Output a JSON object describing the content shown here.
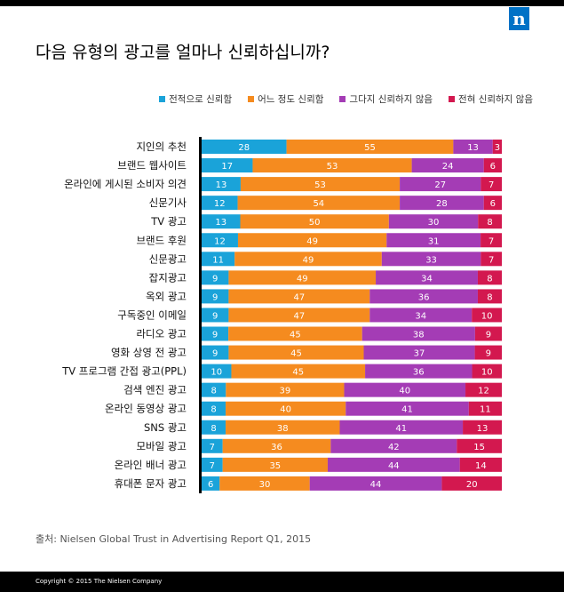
{
  "header": {
    "logo_letter": "n"
  },
  "chart_data": {
    "type": "bar",
    "orientation": "horizontal",
    "stacked": true,
    "title": "다음 유형의 광고를 얼마나 신뢰하십니까?",
    "categories": [
      "지인의 추천",
      "브랜드 웹사이트",
      "온라인에 게시된 소비자 의견",
      "신문기사",
      "TV 광고",
      "브랜드 후원",
      "신문광고",
      "잡지광고",
      "옥외 광고",
      "구독중인 이메일",
      "라디오 광고",
      "영화 상영 전 광고",
      "TV 프로그램 간접 광고(PPL)",
      "검색 엔진 광고",
      "온라인 동영상 광고",
      "SNS 광고",
      "모바일 광고",
      "온라인 배너 광고",
      "휴대폰 문자 광고"
    ],
    "series": [
      {
        "name": "전적으로 신뢰함",
        "color": "#1aa3d9",
        "values": [
          28,
          17,
          13,
          12,
          13,
          12,
          11,
          9,
          9,
          9,
          9,
          9,
          10,
          8,
          8,
          8,
          7,
          7,
          6
        ]
      },
      {
        "name": "어느 정도 신뢰함",
        "color": "#f58b1f",
        "values": [
          55,
          53,
          53,
          54,
          50,
          49,
          49,
          49,
          47,
          47,
          45,
          45,
          45,
          39,
          40,
          38,
          36,
          35,
          30
        ]
      },
      {
        "name": "그다지 신뢰하지 않음",
        "color": "#a43cb5",
        "values": [
          13,
          24,
          27,
          28,
          30,
          31,
          33,
          34,
          36,
          34,
          38,
          37,
          36,
          40,
          41,
          41,
          42,
          44,
          44
        ]
      },
      {
        "name": "전혀 신뢰하지 않음",
        "color": "#d3184f",
        "values": [
          3,
          6,
          7,
          6,
          8,
          7,
          7,
          8,
          8,
          10,
          9,
          9,
          10,
          12,
          11,
          13,
          15,
          14,
          20
        ]
      }
    ],
    "legend_position": "top-right",
    "grid": false
  },
  "source": "출처: Nielsen Global Trust in Advertising Report Q1, 2015",
  "footer": {
    "copyright": "Copyright © 2015 The Nielsen Company"
  }
}
